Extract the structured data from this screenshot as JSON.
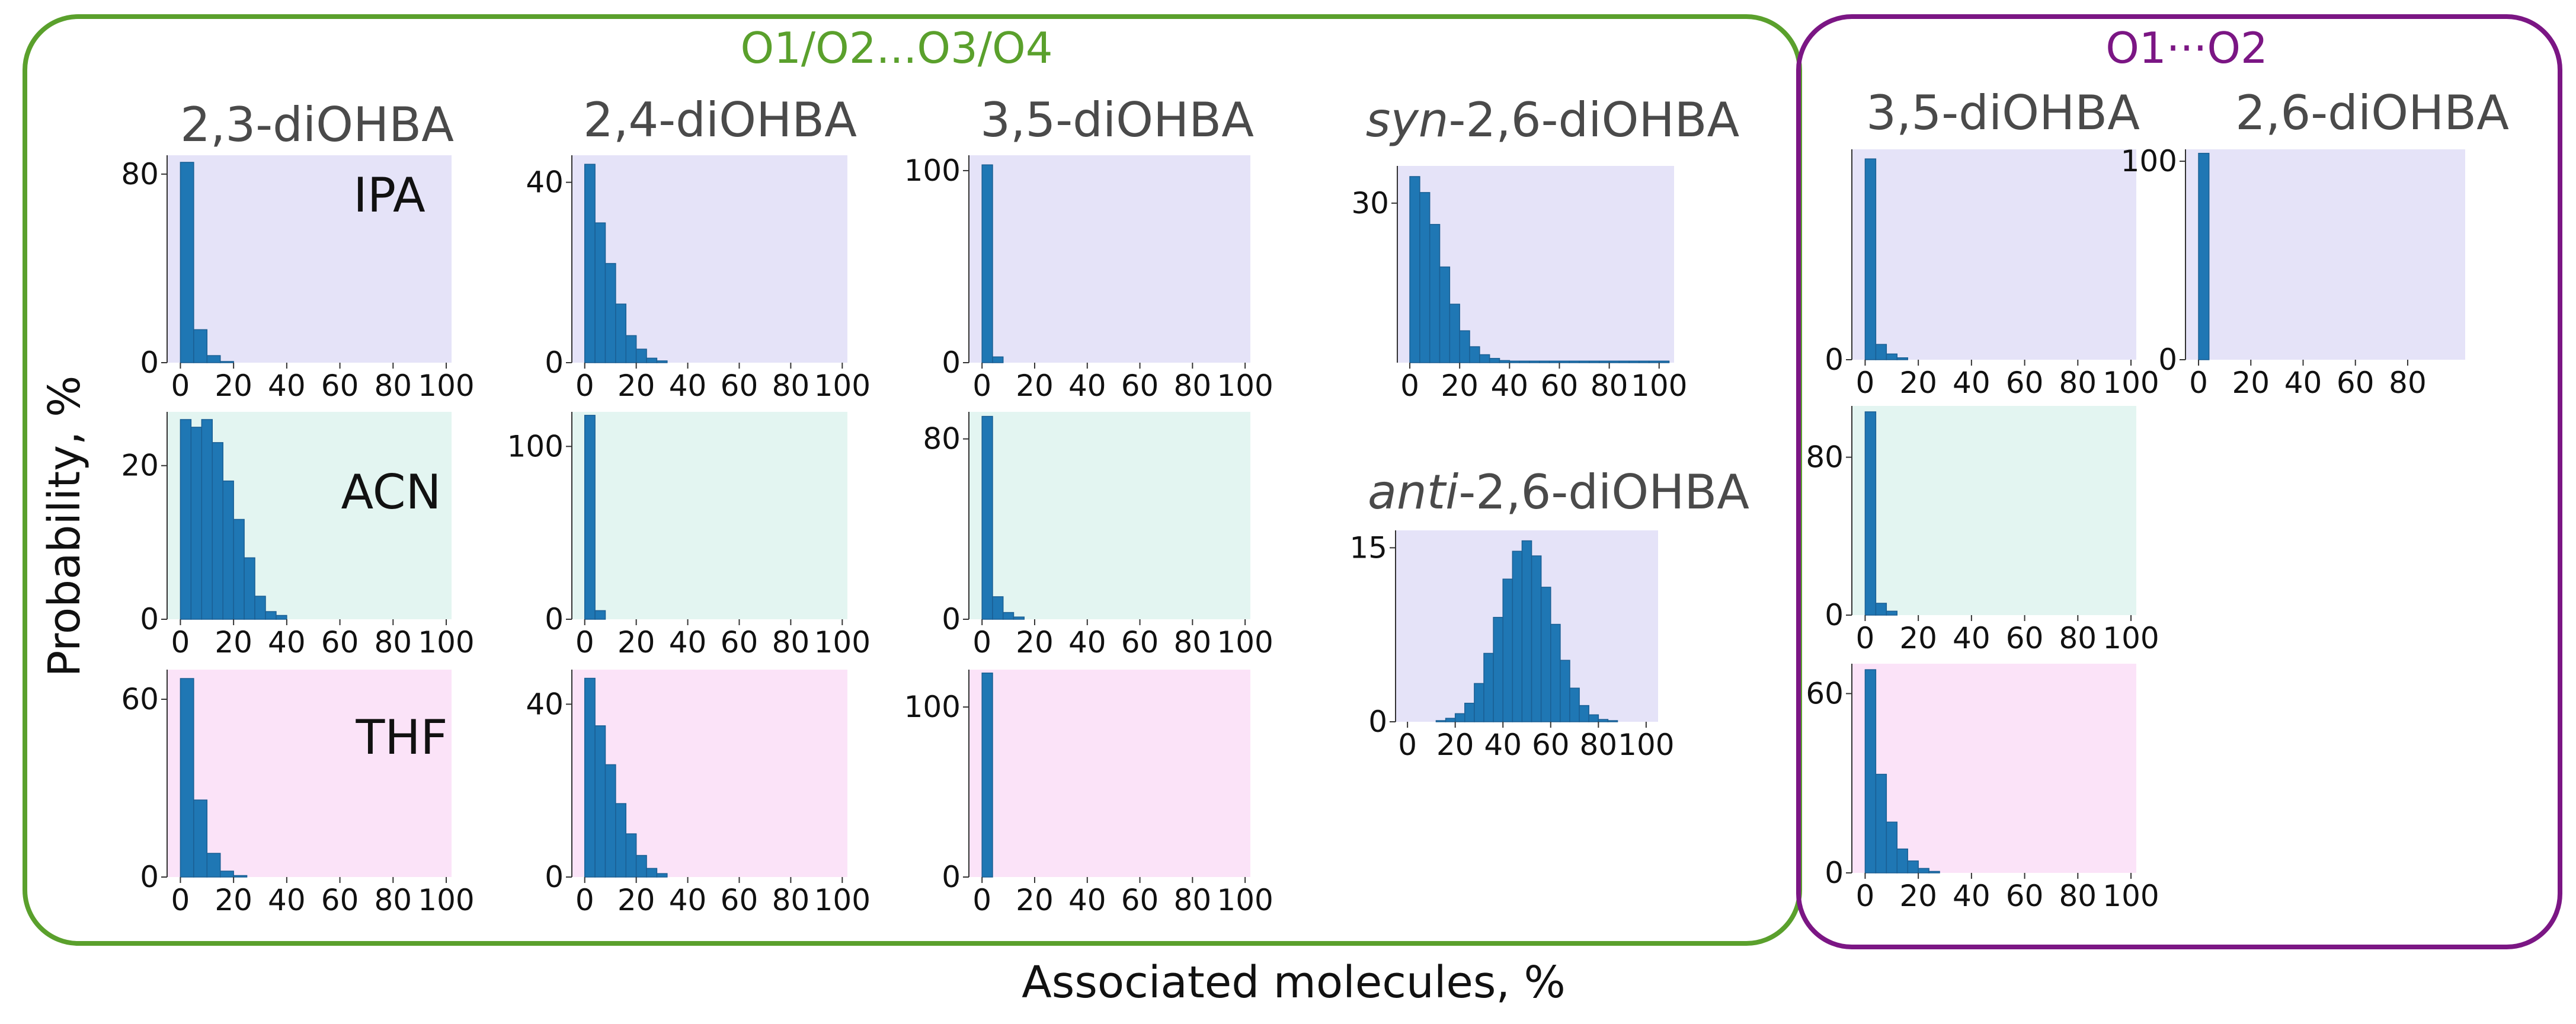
{
  "groups": {
    "green": {
      "label": "O1/O2...O3/O4",
      "color": "#5aa02c"
    },
    "purple": {
      "label": "O1···O2",
      "color": "#7b1684"
    }
  },
  "columns": {
    "c1": "2,3-diOHBA",
    "c2": "2,4-diOHBA",
    "c3": "3,5-diOHBA",
    "c4_syn": {
      "prefix": "syn",
      "rest": "-2,6-diOHBA"
    },
    "c4_anti": {
      "prefix": "anti",
      "rest": "-2,6-diOHBA"
    },
    "c5": "3,5-diOHBA",
    "c6": "2,6-diOHBA"
  },
  "solvents": {
    "ipa": "IPA",
    "acn": "ACN",
    "thf": "THF"
  },
  "axes": {
    "ylabel": "Probability, %",
    "xlabel": "Associated molecules, %"
  },
  "colors": {
    "bar": "#1f77b4",
    "bar_edge": "#1a5f94",
    "bg_ipa": "#e5e3f8",
    "bg_acn": "#e3f5f1",
    "bg_thf": "#fbe3f8"
  },
  "chart_data": [
    {
      "id": "g-23-ipa",
      "type": "bar",
      "group": "O1/O2...O3/O4",
      "molecule": "2,3-diOHBA",
      "solvent": "IPA",
      "xlabel": "Associated molecules, %",
      "ylabel": "Probability, %",
      "xlim": [
        -5,
        102
      ],
      "ylim": [
        0,
        88
      ],
      "xticks": [
        0,
        20,
        40,
        60,
        80,
        100
      ],
      "yticks": [
        0,
        80
      ],
      "bin_width": 5,
      "bin_start": 0,
      "values": [
        85,
        14,
        3,
        0.5
      ]
    },
    {
      "id": "g-24-ipa",
      "type": "bar",
      "group": "O1/O2...O3/O4",
      "molecule": "2,4-diOHBA",
      "solvent": "IPA",
      "xlabel": "Associated molecules, %",
      "ylabel": "Probability, %",
      "xlim": [
        -5,
        102
      ],
      "ylim": [
        0,
        46
      ],
      "xticks": [
        0,
        20,
        40,
        60,
        80,
        100
      ],
      "yticks": [
        0,
        40
      ],
      "bin_width": 4,
      "bin_start": 0,
      "values": [
        44,
        31,
        22,
        13,
        6,
        3,
        1,
        0.4
      ]
    },
    {
      "id": "g-35-ipa",
      "type": "bar",
      "group": "O1/O2...O3/O4",
      "molecule": "3,5-diOHBA",
      "solvent": "IPA",
      "xlabel": "Associated molecules, %",
      "ylabel": "Probability, %",
      "xlim": [
        -5,
        102
      ],
      "ylim": [
        0,
        108
      ],
      "xticks": [
        0,
        20,
        40,
        60,
        80,
        100
      ],
      "yticks": [
        0,
        100
      ],
      "bin_width": 4,
      "bin_start": 0,
      "values": [
        103,
        3
      ]
    },
    {
      "id": "g-syn26",
      "type": "bar",
      "group": "O1/O2...O3/O4",
      "molecule": "syn-2,6-diOHBA",
      "solvent": "IPA",
      "xlabel": "Associated molecules, %",
      "ylabel": "Probability, %",
      "xlim": [
        -5,
        106
      ],
      "ylim": [
        0,
        37
      ],
      "xticks": [
        0,
        20,
        40,
        60,
        80,
        100
      ],
      "yticks": [
        30
      ],
      "bin_width": 4,
      "bin_start": 0,
      "values": [
        35,
        32,
        26,
        18,
        11,
        6,
        3,
        1.5,
        0.8,
        0.4,
        0.3,
        0.3,
        0.3,
        0.3,
        0.3,
        0.3,
        0.3,
        0.3,
        0.3,
        0.3,
        0.3,
        0.3,
        0.3,
        0.3,
        0.3,
        0.3
      ]
    },
    {
      "id": "g-anti26",
      "type": "bar",
      "group": "O1/O2...O3/O4",
      "molecule": "anti-2,6-diOHBA",
      "solvent": "IPA",
      "xlabel": "Associated molecules, %",
      "ylabel": "Probability, %",
      "xlim": [
        -5,
        105
      ],
      "ylim": [
        0,
        16.5
      ],
      "xticks": [
        0,
        20,
        40,
        60,
        80,
        100
      ],
      "yticks": [
        0,
        15
      ],
      "bin_width": 4,
      "bin_start": 0,
      "values": [
        0,
        0,
        0,
        0.1,
        0.3,
        0.7,
        1.6,
        3.3,
        5.9,
        9,
        12.3,
        14.7,
        15.6,
        14.3,
        11.6,
        8.4,
        5.3,
        2.9,
        1.4,
        0.6,
        0.2,
        0.1
      ]
    },
    {
      "id": "g-23-acn",
      "type": "bar",
      "group": "O1/O2...O3/O4",
      "molecule": "2,3-diOHBA",
      "solvent": "ACN",
      "xlabel": "Associated molecules, %",
      "ylabel": "Probability, %",
      "xlim": [
        -5,
        102
      ],
      "ylim": [
        0,
        27
      ],
      "xticks": [
        0,
        20,
        40,
        60,
        80,
        100
      ],
      "yticks": [
        0,
        20
      ],
      "bin_width": 4,
      "bin_start": 0,
      "values": [
        26,
        25,
        26,
        23,
        18,
        13,
        8,
        3,
        1,
        0.5
      ]
    },
    {
      "id": "g-24-acn",
      "type": "bar",
      "group": "O1/O2...O3/O4",
      "molecule": "2,4-diOHBA",
      "solvent": "ACN",
      "xlabel": "Associated molecules, %",
      "ylabel": "Probability, %",
      "xlim": [
        -5,
        102
      ],
      "ylim": [
        0,
        120
      ],
      "xticks": [
        0,
        20,
        40,
        60,
        80,
        100
      ],
      "yticks": [
        0,
        100
      ],
      "bin_width": 4,
      "bin_start": 0,
      "values": [
        118,
        5
      ]
    },
    {
      "id": "g-35-acn",
      "type": "bar",
      "group": "O1/O2...O3/O4",
      "molecule": "3,5-diOHBA",
      "solvent": "ACN",
      "xlabel": "Associated molecules, %",
      "ylabel": "Probability, %",
      "xlim": [
        -5,
        102
      ],
      "ylim": [
        0,
        92
      ],
      "xticks": [
        0,
        20,
        40,
        60,
        80,
        100
      ],
      "yticks": [
        0,
        80
      ],
      "bin_width": 4,
      "bin_start": 0,
      "values": [
        90,
        10,
        3,
        1
      ]
    },
    {
      "id": "g-23-thf",
      "type": "bar",
      "group": "O1/O2...O3/O4",
      "molecule": "2,3-diOHBA",
      "solvent": "THF",
      "xlabel": "Associated molecules, %",
      "ylabel": "Probability, %",
      "xlim": [
        -5,
        102
      ],
      "ylim": [
        0,
        70
      ],
      "xticks": [
        0,
        20,
        40,
        60,
        80,
        100
      ],
      "yticks": [
        0,
        60
      ],
      "bin_width": 5,
      "bin_start": 0,
      "values": [
        67,
        26,
        8,
        2,
        0.5
      ]
    },
    {
      "id": "g-24-thf",
      "type": "bar",
      "group": "O1/O2...O3/O4",
      "molecule": "2,4-diOHBA",
      "solvent": "THF",
      "xlabel": "Associated molecules, %",
      "ylabel": "Probability, %",
      "xlim": [
        -5,
        102
      ],
      "ylim": [
        0,
        48
      ],
      "xticks": [
        0,
        20,
        40,
        60,
        80,
        100
      ],
      "yticks": [
        0,
        40
      ],
      "bin_width": 4,
      "bin_start": 0,
      "values": [
        46,
        35,
        26,
        17,
        10,
        5,
        2,
        0.8
      ]
    },
    {
      "id": "g-35-thf",
      "type": "bar",
      "group": "O1/O2...O3/O4",
      "molecule": "3,5-diOHBA",
      "solvent": "THF",
      "xlabel": "Associated molecules, %",
      "ylabel": "Probability, %",
      "xlim": [
        -5,
        102
      ],
      "ylim": [
        0,
        122
      ],
      "xticks": [
        0,
        20,
        40,
        60,
        80,
        100
      ],
      "yticks": [
        0,
        100
      ],
      "bin_width": 4,
      "bin_start": 0,
      "values": [
        120
      ]
    },
    {
      "id": "p-35-ipa",
      "type": "bar",
      "group": "O1···O2",
      "molecule": "3,5-diOHBA",
      "solvent": "IPA",
      "xlabel": "Associated molecules, %",
      "ylabel": "Probability, %",
      "xlim": [
        -5,
        102
      ],
      "ylim": [
        0,
        110
      ],
      "xticks": [
        0,
        20,
        40,
        60,
        80,
        100
      ],
      "yticks": [
        0
      ],
      "bin_width": 4,
      "bin_start": 0,
      "values": [
        105,
        8,
        3,
        1
      ]
    },
    {
      "id": "p-26-ipa",
      "type": "bar",
      "group": "O1···O2",
      "molecule": "2,6-diOHBA",
      "solvent": "IPA",
      "xlabel": "Associated molecules, %",
      "ylabel": "Probability, %",
      "xlim": [
        -5,
        102
      ],
      "ylim": [
        0,
        106
      ],
      "xticks": [
        0,
        20,
        40,
        60,
        80
      ],
      "yticks": [
        0,
        100
      ],
      "bin_width": 4,
      "bin_start": 0,
      "values": [
        104
      ]
    },
    {
      "id": "p-35-acn",
      "type": "bar",
      "group": "O1···O2",
      "molecule": "3,5-diOHBA",
      "solvent": "ACN",
      "xlabel": "Associated molecules, %",
      "ylabel": "Probability, %",
      "xlim": [
        -5,
        102
      ],
      "ylim": [
        0,
        106
      ],
      "xticks": [
        0,
        20,
        40,
        60,
        80,
        100
      ],
      "yticks": [
        0,
        80
      ],
      "bin_width": 4,
      "bin_start": 0,
      "values": [
        103,
        6,
        2
      ]
    },
    {
      "id": "p-35-thf",
      "type": "bar",
      "group": "O1···O2",
      "molecule": "3,5-diOHBA",
      "solvent": "THF",
      "xlabel": "Associated molecules, %",
      "ylabel": "Probability, %",
      "xlim": [
        -5,
        102
      ],
      "ylim": [
        0,
        70
      ],
      "xticks": [
        0,
        20,
        40,
        60,
        80,
        100
      ],
      "yticks": [
        0,
        60
      ],
      "bin_width": 4,
      "bin_start": 0,
      "values": [
        68,
        33,
        17,
        8,
        4,
        1.5,
        0.5
      ]
    }
  ]
}
